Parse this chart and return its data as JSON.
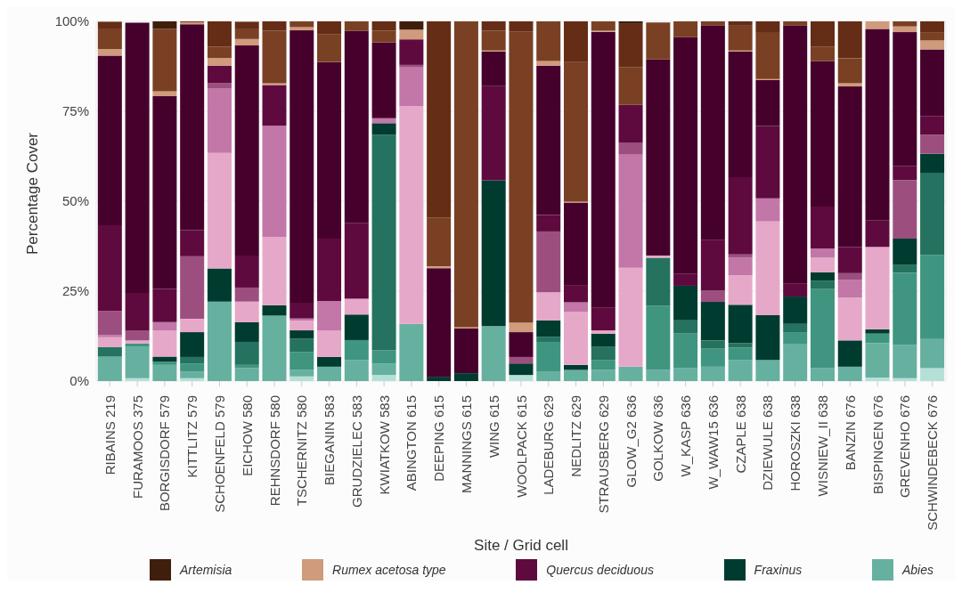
{
  "chart_data": {
    "type": "bar",
    "stacked": true,
    "xlabel": "Site / Grid cell",
    "ylabel": "Percentage Cover",
    "categories": [
      "RIBAINS 219",
      "FURAMOOS 375",
      "BORGISDORF 579",
      "KITTLITZ 579",
      "SCHOENFELD 579",
      "EICHOW 580",
      "REHNSDORF 580",
      "TSCHERNITZ 580",
      "BIEGANIN 583",
      "GRUDZIELEC 583",
      "KWIATKOW 583",
      "ABINGTON 615",
      "DEEPING 615",
      "MANNINGS 615",
      "WING 615",
      "WOOLPACK 615",
      "LADEBURG 629",
      "NEDLITZ 629",
      "STRAUSBERG 629",
      "GLOW_G2 636",
      "GOLKOW 636",
      "W_KASP 636",
      "W_WAW15 636",
      "CZAPLE 638",
      "DZIEWULE 638",
      "HOROSZKI 638",
      "WISNIEW_II 638",
      "BANZIN 676",
      "BISPINGEN 676",
      "GREVENHO 676",
      "SCHWINDEBECK 676"
    ],
    "series": [
      {
        "color": "#b5e0d8",
        "values": [
          0,
          0.8,
          0,
          0.8,
          0,
          0,
          0,
          1.3,
          0,
          0,
          1.7,
          0,
          0,
          0,
          0,
          1.7,
          0,
          0,
          0,
          0,
          0,
          0,
          0,
          0,
          0,
          0,
          0,
          0,
          1.0,
          0.8,
          3.6
        ]
      },
      {
        "name": "Abies",
        "color": "#66b0a0",
        "values": [
          6.8,
          8.7,
          4.5,
          1.8,
          22.1,
          3.6,
          18.2,
          1.8,
          4.0,
          5.9,
          3.2,
          15.9,
          0,
          0,
          15.3,
          0,
          2.7,
          3.1,
          3.1,
          4.0,
          3.1,
          3.6,
          4.0,
          5.9,
          5.9,
          10.4,
          3.6,
          4.0,
          9.6,
          9.2,
          8.1
        ]
      },
      {
        "color": "#3f9580",
        "values": [
          0,
          0.9,
          0.9,
          2.3,
          0,
          0.9,
          0,
          5.0,
          0,
          5.5,
          3.7,
          0,
          0,
          0,
          0,
          0,
          8.2,
          0,
          2.7,
          0,
          17.9,
          9.6,
          5.0,
          3.4,
          0,
          3.2,
          22.0,
          0,
          2.6,
          20.1,
          23.3
        ]
      },
      {
        "color": "#24725f",
        "values": [
          2.7,
          0,
          0,
          1.8,
          0,
          6.4,
          0,
          3.7,
          0,
          0,
          59.9,
          0,
          0,
          0,
          0,
          0,
          1.4,
          0,
          3.7,
          0,
          13.3,
          3.7,
          2.3,
          1.2,
          0,
          2.3,
          2.3,
          0,
          0,
          2.3,
          22.9
        ]
      },
      {
        "name": "Fraxinus",
        "color": "#003b30",
        "values": [
          0,
          0,
          1.4,
          6.9,
          9.2,
          5.5,
          2.9,
          2.3,
          2.7,
          7.1,
          3.2,
          0,
          1.2,
          2.2,
          40.5,
          3.2,
          4.6,
          1.4,
          3.7,
          0,
          null,
          9.6,
          10.7,
          10.7,
          12.4,
          7.6,
          2.3,
          7.3,
          1.2,
          7.2,
          5.3
        ]
      },
      {
        "color": "#e6a8c9",
        "values": [
          2.7,
          0.9,
          7.3,
          3.7,
          32.1,
          5.7,
          19.0,
          2.7,
          7.3,
          4.4,
          0,
          60.6,
          0,
          0,
          0,
          0,
          7.8,
          14.7,
          0.9,
          27.5,
          0.6,
          0,
          0,
          8.2,
          26.1,
          0,
          4.1,
          11.9,
          22.9,
          0,
          0
        ]
      },
      {
        "color": "#c277a8",
        "values": [
          0.6,
          0,
          2.3,
          0,
          17.9,
          0,
          30.9,
          0.6,
          8.2,
          0,
          1.4,
          10.7,
          0,
          0,
          0,
          0,
          0,
          2.7,
          0,
          31.6,
          0,
          0,
          0,
          4.9,
          6.4,
          0,
          2.5,
          5.0,
          0,
          0,
          0
        ]
      },
      {
        "color": "#9c4f7f",
        "values": [
          6.7,
          2.7,
          0,
          17.4,
          1.6,
          3.9,
          0,
          0,
          0,
          0,
          0,
          0.7,
          0,
          0,
          0,
          1.8,
          16.9,
          0,
          0,
          3.2,
          0,
          0,
          3.2,
          0.9,
          0,
          0,
          0,
          1.8,
          0,
          16.3,
          5.3
        ]
      },
      {
        "name": "Quercus deciduous",
        "color": "#5e0a3f",
        "values": [
          23.8,
          10.5,
          9.2,
          7.3,
          4.8,
          8.9,
          11.3,
          4.4,
          17.4,
          21.1,
          0,
          7.1,
          0,
          0,
          26.2,
          0,
          4.6,
          4.8,
          6.4,
          10.5,
          0,
          3.4,
          14.0,
          21.5,
          20.1,
          3.7,
          11.7,
          7.3,
          7.3,
          3.9,
          5.2
        ]
      },
      {
        "color": "#46002c",
        "values": [
          47.2,
          75.1,
          53.6,
          57.2,
          0,
          58.4,
          0,
          75.7,
          49.1,
          53.4,
          21.1,
          0,
          30.2,
          12.4,
          9.6,
          6.9,
          41.5,
          22.9,
          76.6,
          0,
          54.5,
          65.7,
          59.6,
          34.9,
          12.8,
          71.6,
          40.5,
          44.6,
          53.3,
          37.2,
          18.5
        ]
      },
      {
        "name": "Rumex acetosa type",
        "color": "#d09a7c",
        "values": [
          1.8,
          0,
          1.4,
          0.5,
          2.1,
          1.8,
          0.5,
          0.9,
          0,
          0,
          0,
          2.7,
          0.5,
          0.4,
          0.3,
          2.7,
          1.3,
          0.3,
          0.3,
          0,
          0,
          0,
          0,
          0.3,
          0.3,
          0,
          0,
          0.9,
          2.1,
          1.6,
          2.5
        ]
      },
      {
        "color": "#7a4024",
        "values": [
          5.5,
          0,
          17.3,
          0.3,
          3.2,
          2.7,
          14.6,
          1.6,
          7.8,
          2.6,
          3.2,
          0,
          13.6,
          85.0,
          5.5,
          80.9,
          11.0,
          38.8,
          2.6,
          10.5,
          10.3,
          4.4,
          1.2,
          6.9,
          13.0,
          1.2,
          3.9,
          6.9,
          0,
          1.4,
          2.3
        ]
      },
      {
        "color": "#652d15",
        "values": [
          2.1,
          null,
          0,
          0,
          7.0,
          2.1,
          2.6,
          0,
          3.5,
          0,
          2.6,
          0,
          54.5,
          0,
          2.6,
          2.8,
          0,
          11.3,
          0,
          12.0,
          0,
          0,
          0,
          1.2,
          3.0,
          0,
          7.1,
          10.3,
          0,
          0,
          3.0
        ]
      },
      {
        "name": "Artemisia",
        "color": "#3f1e0c",
        "values": [
          0,
          0,
          2.1,
          0,
          0,
          0,
          0,
          0,
          0,
          0,
          0,
          2.3,
          0,
          0,
          0,
          0,
          0,
          0,
          0,
          0.7,
          0,
          0,
          0,
          0,
          0,
          0,
          0,
          0,
          0,
          0,
          0
        ]
      }
    ],
    "ylim": [
      0,
      100
    ],
    "yticks": [
      {
        "value": 0,
        "label": "0%"
      },
      {
        "value": 25,
        "label": "25%"
      },
      {
        "value": 50,
        "label": "50%"
      },
      {
        "value": 75,
        "label": "75%"
      },
      {
        "value": 100,
        "label": "100%"
      }
    ],
    "grid": true,
    "legend": "bottom"
  }
}
